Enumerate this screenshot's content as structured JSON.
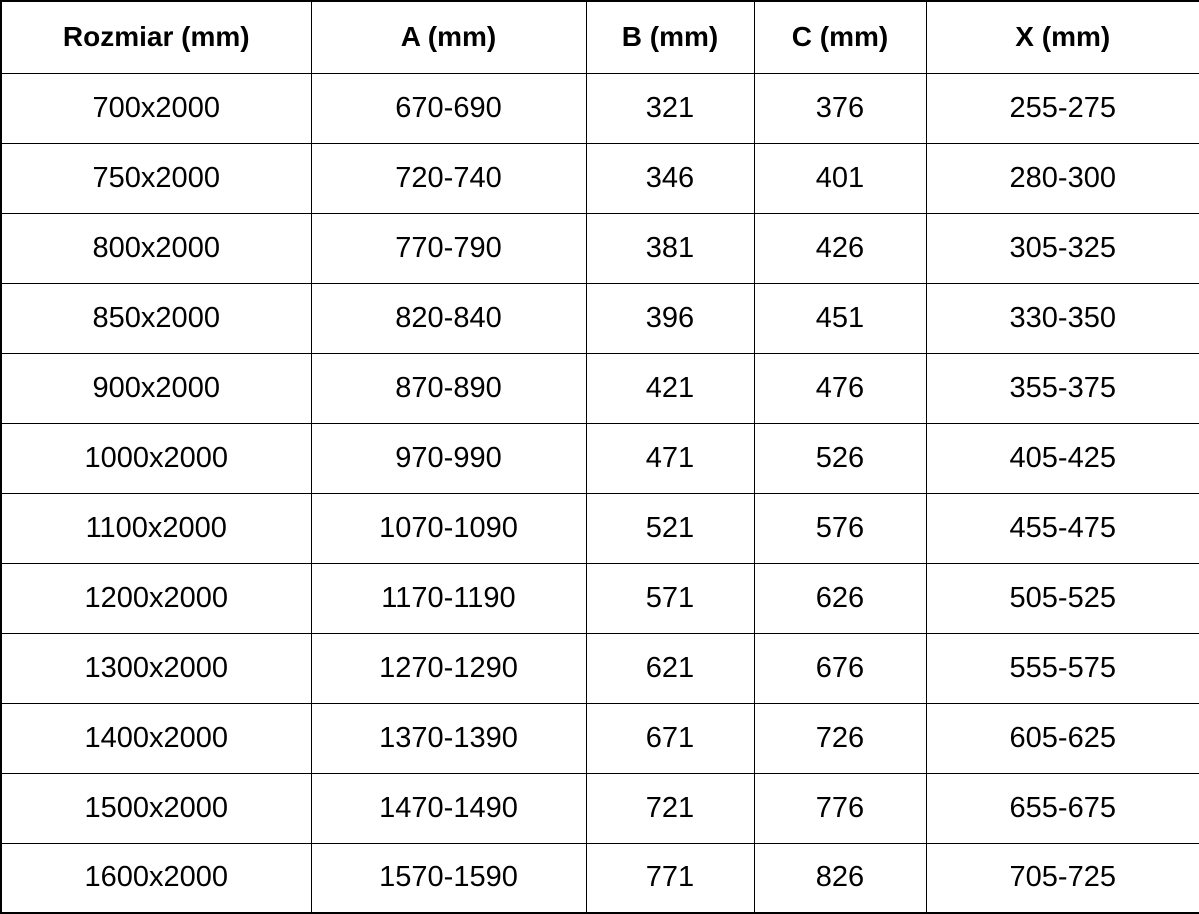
{
  "table": {
    "title": "dimension-spec-table",
    "colors": {
      "border": "#000000",
      "text": "#000000",
      "background": "#ffffff"
    },
    "columns": [
      {
        "label": "Rozmiar (mm)"
      },
      {
        "label": "A (mm)"
      },
      {
        "label": "B (mm)"
      },
      {
        "label": "C (mm)"
      },
      {
        "label": "X (mm)"
      }
    ],
    "rows": [
      [
        "700x2000",
        "670-690",
        "321",
        "376",
        "255-275"
      ],
      [
        "750x2000",
        "720-740",
        "346",
        "401",
        "280-300"
      ],
      [
        "800x2000",
        "770-790",
        "381",
        "426",
        "305-325"
      ],
      [
        "850x2000",
        "820-840",
        "396",
        "451",
        "330-350"
      ],
      [
        "900x2000",
        "870-890",
        "421",
        "476",
        "355-375"
      ],
      [
        "1000x2000",
        "970-990",
        "471",
        "526",
        "405-425"
      ],
      [
        "1100x2000",
        "1070-1090",
        "521",
        "576",
        "455-475"
      ],
      [
        "1200x2000",
        "1170-1190",
        "571",
        "626",
        "505-525"
      ],
      [
        "1300x2000",
        "1270-1290",
        "621",
        "676",
        "555-575"
      ],
      [
        "1400x2000",
        "1370-1390",
        "671",
        "726",
        "605-625"
      ],
      [
        "1500x2000",
        "1470-1490",
        "721",
        "776",
        "655-675"
      ],
      [
        "1600x2000",
        "1570-1590",
        "771",
        "826",
        "705-725"
      ]
    ]
  }
}
